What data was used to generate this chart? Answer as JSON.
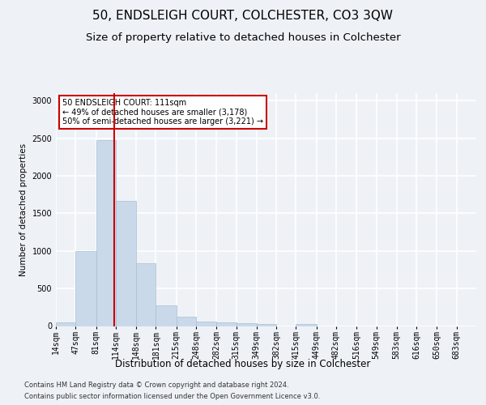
{
  "title": "50, ENDSLEIGH COURT, COLCHESTER, CO3 3QW",
  "subtitle": "Size of property relative to detached houses in Colchester",
  "xlabel": "Distribution of detached houses by size in Colchester",
  "ylabel": "Number of detached properties",
  "footer_line1": "Contains HM Land Registry data © Crown copyright and database right 2024.",
  "footer_line2": "Contains public sector information licensed under the Open Government Licence v3.0.",
  "annotation_line1": "50 ENDSLEIGH COURT: 111sqm",
  "annotation_line2": "← 49% of detached houses are smaller (3,178)",
  "annotation_line3": "50% of semi-detached houses are larger (3,221) →",
  "bar_color": "#c9d9ea",
  "bar_edge_color": "#a8bfd0",
  "vline_color": "#cc0000",
  "vline_x": 111,
  "categories": [
    "14sqm",
    "47sqm",
    "81sqm",
    "114sqm",
    "148sqm",
    "181sqm",
    "215sqm",
    "248sqm",
    "282sqm",
    "315sqm",
    "349sqm",
    "382sqm",
    "415sqm",
    "449sqm",
    "482sqm",
    "516sqm",
    "549sqm",
    "583sqm",
    "616sqm",
    "650sqm",
    "683sqm"
  ],
  "bin_edges": [
    14,
    47,
    81,
    114,
    148,
    181,
    215,
    248,
    282,
    315,
    349,
    382,
    415,
    449,
    482,
    516,
    549,
    583,
    616,
    650,
    683,
    716
  ],
  "values": [
    50,
    1000,
    2480,
    1670,
    840,
    270,
    120,
    60,
    50,
    40,
    30,
    0,
    30,
    0,
    0,
    0,
    0,
    0,
    0,
    0,
    0
  ],
  "ylim": [
    0,
    3100
  ],
  "yticks": [
    0,
    500,
    1000,
    1500,
    2000,
    2500,
    3000
  ],
  "background_color": "#eef2f7",
  "plot_bg_color": "#eef2f7",
  "grid_color": "#ffffff",
  "title_fontsize": 11,
  "subtitle_fontsize": 9.5,
  "xlabel_fontsize": 8.5,
  "ylabel_fontsize": 7.5,
  "footer_fontsize": 6,
  "tick_fontsize": 7,
  "annot_fontsize": 7
}
